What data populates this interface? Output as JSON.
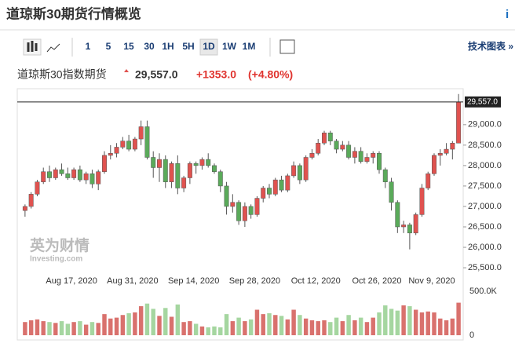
{
  "header": {
    "title": "道琼斯30期货行情概览",
    "info": "i"
  },
  "toolbar": {
    "intervals": [
      "1",
      "5",
      "15",
      "30",
      "1H",
      "5H",
      "1D",
      "1W",
      "1M"
    ],
    "selected": "1D",
    "link": "技术图表 »"
  },
  "quote": {
    "name": "道琼斯30指数期货",
    "price": "29,557.0",
    "change": "+1353.0",
    "change_pct": "(+4.80%)"
  },
  "watermark": {
    "cn": "英为财情",
    "en": "Investing.com"
  },
  "chart_data": {
    "type": "candlestick",
    "categories": [
      null,
      null,
      null,
      null,
      null,
      null,
      null,
      null,
      "Aug 17, 2020",
      null,
      null,
      null,
      null,
      null,
      null,
      null,
      null,
      null,
      "Aug 31, 2020",
      null,
      null,
      null,
      null,
      null,
      null,
      null,
      null,
      null,
      "Sep 14, 2020",
      null,
      null,
      null,
      null,
      null,
      null,
      null,
      null,
      null,
      "Sep 28, 2020",
      null,
      null,
      null,
      null,
      null,
      null,
      null,
      null,
      null,
      "Oct 12, 2020",
      null,
      null,
      null,
      null,
      null,
      null,
      null,
      null,
      null,
      "Oct 26, 2020",
      null,
      null,
      null,
      null,
      null,
      null,
      null,
      null,
      "Nov 9, 2020",
      null,
      null,
      null,
      null
    ],
    "open": [
      26900,
      27000,
      27300,
      27600,
      27850,
      27700,
      27900,
      27800,
      27700,
      27900,
      27650,
      27800,
      27550,
      27850,
      28250,
      28300,
      28450,
      28600,
      28400,
      28650,
      28950,
      28200,
      27950,
      28150,
      27600,
      28050,
      27450,
      27700,
      28050,
      28000,
      28150,
      28000,
      27850,
      27500,
      27000,
      27100,
      26650,
      27000,
      26800,
      27200,
      27450,
      27300,
      27650,
      27400,
      27750,
      28000,
      27650,
      28200,
      28300,
      28550,
      28800,
      28600,
      28400,
      28500,
      28200,
      28350,
      28100,
      28200,
      28300,
      27900,
      27600,
      27100,
      26500,
      26550,
      26350,
      26800,
      27450,
      27800,
      28250,
      28300,
      28400,
      28550
    ],
    "high": [
      27050,
      27350,
      27650,
      27950,
      28000,
      27950,
      28050,
      27950,
      27950,
      28000,
      27850,
      27900,
      27900,
      28350,
      28500,
      28550,
      28700,
      28750,
      28700,
      29100,
      29100,
      28350,
      28300,
      28250,
      28100,
      28250,
      27750,
      28100,
      28100,
      28200,
      28300,
      28050,
      27900,
      27600,
      27300,
      27150,
      27100,
      27050,
      27250,
      27500,
      27550,
      27700,
      27750,
      27800,
      28100,
      28050,
      28250,
      28400,
      28650,
      28850,
      28850,
      28650,
      28600,
      28600,
      28450,
      28450,
      28300,
      28350,
      28350,
      27950,
      27700,
      27150,
      26650,
      26600,
      26850,
      27550,
      27850,
      28300,
      28400,
      28550,
      28600,
      29750
    ],
    "low": [
      26750,
      26950,
      27250,
      27550,
      27600,
      27650,
      27750,
      27650,
      27650,
      27600,
      27550,
      27450,
      27400,
      27800,
      28150,
      28200,
      28400,
      28350,
      28350,
      28500,
      28150,
      27700,
      27600,
      27450,
      27450,
      27300,
      27350,
      27550,
      27800,
      27900,
      27950,
      27800,
      27350,
      26800,
      26850,
      26550,
      26500,
      26700,
      26750,
      27100,
      27200,
      27250,
      27350,
      27350,
      27700,
      27550,
      27600,
      28150,
      28250,
      28500,
      28500,
      28300,
      28350,
      28150,
      28050,
      28050,
      28050,
      28050,
      27800,
      27450,
      26900,
      26350,
      26350,
      25950,
      26300,
      26750,
      27400,
      27750,
      28000,
      28250,
      28150,
      28550
    ],
    "close": [
      27000,
      27300,
      27600,
      27850,
      27700,
      27900,
      27800,
      27700,
      27900,
      27650,
      27800,
      27550,
      27850,
      28250,
      28300,
      28450,
      28600,
      28400,
      28650,
      28950,
      28200,
      27950,
      28150,
      27600,
      28050,
      27450,
      27700,
      28050,
      28000,
      28150,
      28000,
      27850,
      27500,
      27000,
      27100,
      26650,
      27000,
      26800,
      27200,
      27450,
      27300,
      27650,
      27400,
      27750,
      28000,
      27650,
      28200,
      28300,
      28550,
      28800,
      28600,
      28400,
      28500,
      28200,
      28350,
      28100,
      28200,
      28300,
      27900,
      27600,
      27100,
      26500,
      26550,
      26350,
      26800,
      27450,
      27800,
      28250,
      28300,
      28400,
      28550,
      29557
    ],
    "volume": [
      150000,
      170000,
      180000,
      160000,
      150000,
      140000,
      160000,
      130000,
      150000,
      160000,
      120000,
      150000,
      140000,
      240000,
      190000,
      200000,
      230000,
      250000,
      260000,
      330000,
      360000,
      300000,
      220000,
      310000,
      210000,
      350000,
      150000,
      160000,
      130000,
      100000,
      90000,
      100000,
      90000,
      240000,
      160000,
      200000,
      160000,
      180000,
      290000,
      240000,
      250000,
      230000,
      220000,
      180000,
      290000,
      230000,
      190000,
      170000,
      160000,
      170000,
      150000,
      200000,
      160000,
      230000,
      170000,
      200000,
      150000,
      200000,
      260000,
      340000,
      300000,
      280000,
      340000,
      330000,
      290000,
      260000,
      270000,
      260000,
      190000,
      170000,
      190000,
      370000
    ],
    "up_color": "#e0524f",
    "down_color": "#5aaa5a",
    "up_volume_color": "#d9716d",
    "down_volume_color": "#a5d6a0",
    "ylim": [
      25290,
      29880
    ],
    "yticks": [
      {
        "value": 29000,
        "label": "29,000.0"
      },
      {
        "value": 28500,
        "label": "28,500.0"
      },
      {
        "value": 28000,
        "label": "28,000.0"
      },
      {
        "value": 27500,
        "label": "27,500.0"
      },
      {
        "value": 27000,
        "label": "27,000.0"
      },
      {
        "value": 26500,
        "label": "26,500.0"
      },
      {
        "value": 26000,
        "label": "26,000.0"
      },
      {
        "value": 25500,
        "label": "25,500.0"
      }
    ],
    "last_price": {
      "value": 29557,
      "label": "29,557.0"
    },
    "volume_ylim": [
      0,
      500000
    ],
    "volume_ticks": [
      {
        "value": 500000,
        "label": "500.0K"
      },
      0
    ]
  }
}
